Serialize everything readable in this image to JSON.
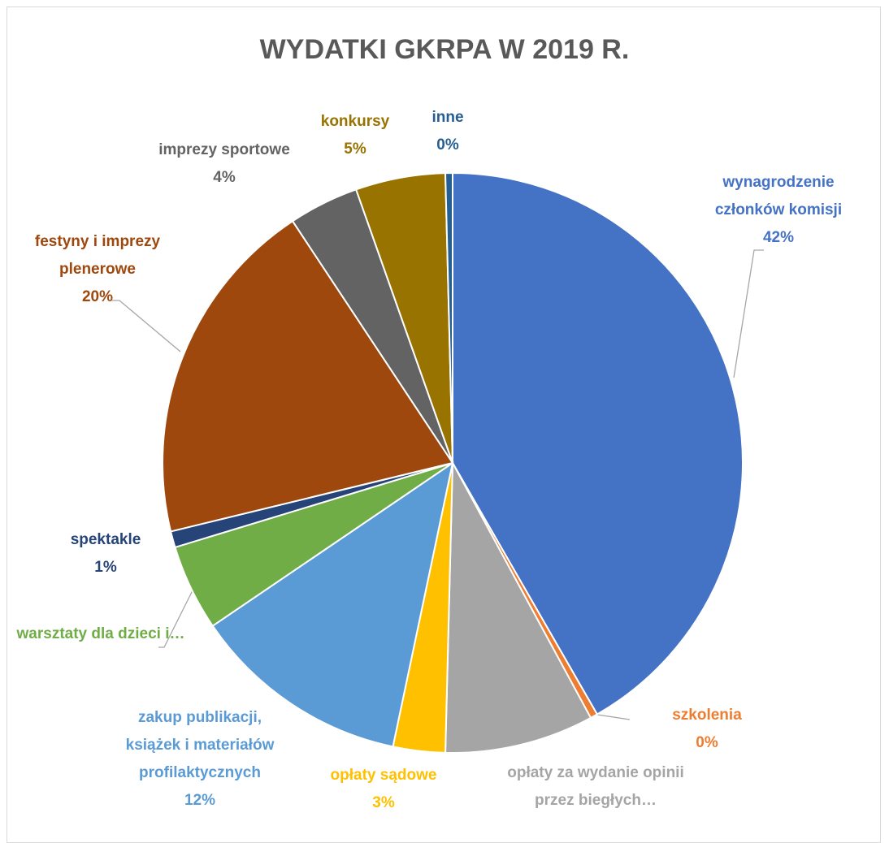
{
  "chart_data": {
    "type": "pie",
    "title": "WYDATKI GKRPA W 2019 R.",
    "categories": [
      "wynagrodzenie członków komisji",
      "szkolenia",
      "opłaty za wydanie opinii przez biegłych…",
      "opłaty sądowe",
      "zakup publikacji, książek i materiałów profilaktycznych",
      "warsztaty dla dzieci i…",
      "spektakle",
      "festyny i imprezy plenerowe",
      "imprezy sportowe",
      "konkursy",
      "inne"
    ],
    "values": [
      41.7,
      0.4,
      8.3,
      2.9,
      12.2,
      4.8,
      0.9,
      19.5,
      3.9,
      5.0,
      0.4
    ],
    "value_labels": [
      "42%",
      "0%",
      null,
      "3%",
      "12%",
      null,
      "1%",
      "20%",
      "4%",
      "5%",
      "0%"
    ],
    "colors": [
      "#4472C4",
      "#ED7D31",
      "#A5A5A5",
      "#FFC000",
      "#5B9BD5",
      "#70AD47",
      "#264478",
      "#9E480E",
      "#636363",
      "#997300",
      "#255E91"
    ]
  }
}
